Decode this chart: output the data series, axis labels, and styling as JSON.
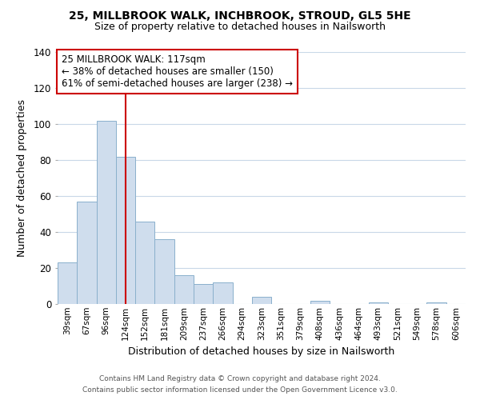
{
  "title": "25, MILLBROOK WALK, INCHBROOK, STROUD, GL5 5HE",
  "subtitle": "Size of property relative to detached houses in Nailsworth",
  "xlabel": "Distribution of detached houses by size in Nailsworth",
  "ylabel": "Number of detached properties",
  "bar_labels": [
    "39sqm",
    "67sqm",
    "96sqm",
    "124sqm",
    "152sqm",
    "181sqm",
    "209sqm",
    "237sqm",
    "266sqm",
    "294sqm",
    "323sqm",
    "351sqm",
    "379sqm",
    "408sqm",
    "436sqm",
    "464sqm",
    "493sqm",
    "521sqm",
    "549sqm",
    "578sqm",
    "606sqm"
  ],
  "bar_values": [
    23,
    57,
    102,
    82,
    46,
    36,
    16,
    11,
    12,
    0,
    4,
    0,
    0,
    2,
    0,
    0,
    1,
    0,
    0,
    1,
    0
  ],
  "bar_color": "#cfdded",
  "bar_edge_color": "#8ab0cc",
  "vline_x": 3,
  "vline_color": "#cc0000",
  "ylim": [
    0,
    140
  ],
  "yticks": [
    0,
    20,
    40,
    60,
    80,
    100,
    120,
    140
  ],
  "annotation_title": "25 MILLBROOK WALK: 117sqm",
  "annotation_line1": "← 38% of detached houses are smaller (150)",
  "annotation_line2": "61% of semi-detached houses are larger (238) →",
  "footer1": "Contains HM Land Registry data © Crown copyright and database right 2024.",
  "footer2": "Contains public sector information licensed under the Open Government Licence v3.0.",
  "background_color": "#ffffff",
  "grid_color": "#c8d8e8"
}
